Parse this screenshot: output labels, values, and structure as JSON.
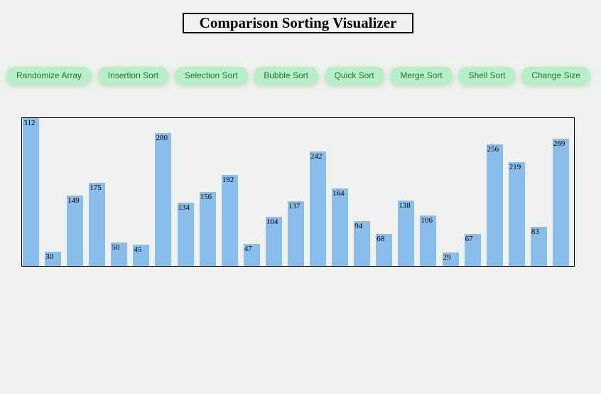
{
  "title": "Comparison Sorting Visualizer",
  "buttons": [
    "Randomize Array",
    "Insertion Sort",
    "Selection Sort",
    "Bubble Sort",
    "Quick Sort",
    "Merge Sort",
    "Shell Sort",
    "Change Size"
  ],
  "array": {
    "values": [
      312,
      30,
      149,
      175,
      50,
      45,
      280,
      134,
      156,
      192,
      47,
      104,
      137,
      242,
      164,
      94,
      68,
      138,
      106,
      29,
      67,
      256,
      219,
      83,
      269
    ],
    "color": "#88bdec"
  }
}
